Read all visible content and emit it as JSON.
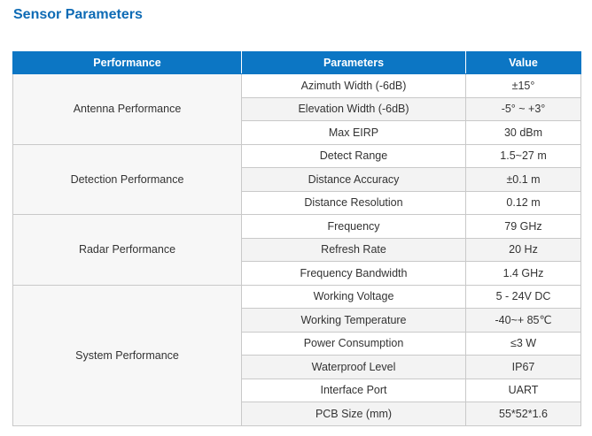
{
  "heading": "Sensor Parameters",
  "columns": [
    "Performance",
    "Parameters",
    "Value"
  ],
  "groups": [
    {
      "name": "Antenna Performance",
      "rows": [
        {
          "param": "Azimuth Width (-6dB)",
          "value": "±15°"
        },
        {
          "param": "Elevation Width (-6dB)",
          "value": "-5° ~ +3°"
        },
        {
          "param": "Max EIRP",
          "value": "30 dBm"
        }
      ]
    },
    {
      "name": "Detection Performance",
      "rows": [
        {
          "param": "Detect Range",
          "value": "1.5~27 m"
        },
        {
          "param": "Distance Accuracy",
          "value": "±0.1 m"
        },
        {
          "param": "Distance Resolution",
          "value": "0.12 m"
        }
      ]
    },
    {
      "name": "Radar Performance",
      "rows": [
        {
          "param": "Frequency",
          "value": "79 GHz"
        },
        {
          "param": "Refresh Rate",
          "value": "20 Hz"
        },
        {
          "param": "Frequency Bandwidth",
          "value": "1.4 GHz"
        }
      ]
    },
    {
      "name": "System Performance",
      "rows": [
        {
          "param": "Working Voltage",
          "value": "5 - 24V DC"
        },
        {
          "param": "Working Temperature",
          "value": "-40~+ 85℃"
        },
        {
          "param": "Power Consumption",
          "value": "≤3 W"
        },
        {
          "param": "Waterproof Level",
          "value": "IP67"
        },
        {
          "param": "Interface Port",
          "value": "UART"
        },
        {
          "param": "PCB Size (mm)",
          "value": "55*52*1.6"
        }
      ]
    }
  ]
}
